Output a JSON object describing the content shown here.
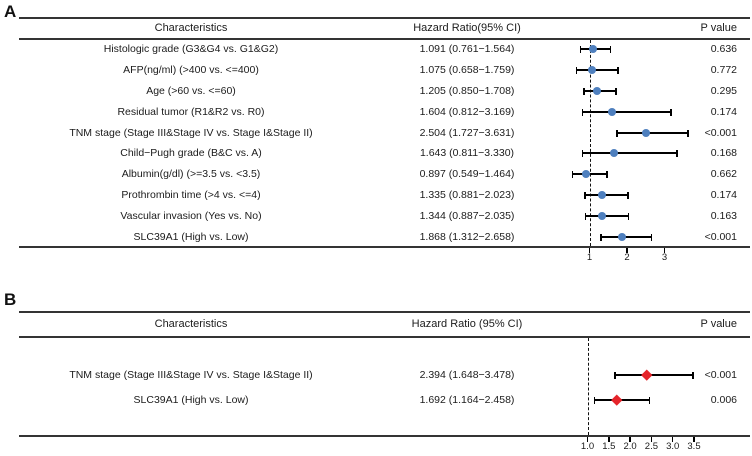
{
  "chart_data": [
    {
      "type": "scatter",
      "subtype": "forest-plot",
      "panel_label": "A",
      "columns": [
        "Characteristics",
        "Hazard Ratio(95% CI)",
        "P value"
      ],
      "x_axis": {
        "tick_labels": [
          "1",
          "2",
          "3"
        ],
        "reference_line": 1,
        "scale": "linear"
      },
      "marker": {
        "shape": "circle",
        "color": "#4e7fbe"
      },
      "error_bar_color": "#000000",
      "rows": [
        {
          "characteristic": "Histologic grade (G3&G4 vs. G1&G2)",
          "hr": 1.091,
          "ci_low": 0.761,
          "ci_high": 1.564,
          "hr_ci_text": "1.091 (0.761−1.564)",
          "p_value": "0.636"
        },
        {
          "characteristic": "AFP(ng/ml) (>400 vs. <=400)",
          "hr": 1.075,
          "ci_low": 0.658,
          "ci_high": 1.759,
          "hr_ci_text": "1.075 (0.658−1.759)",
          "p_value": "0.772"
        },
        {
          "characteristic": "Age (>60 vs. <=60)",
          "hr": 1.205,
          "ci_low": 0.85,
          "ci_high": 1.708,
          "hr_ci_text": "1.205 (0.850−1.708)",
          "p_value": "0.295"
        },
        {
          "characteristic": "Residual tumor (R1&R2 vs. R0)",
          "hr": 1.604,
          "ci_low": 0.812,
          "ci_high": 3.169,
          "hr_ci_text": "1.604 (0.812−3.169)",
          "p_value": "0.174"
        },
        {
          "characteristic": "TNM stage (Stage III&Stage IV vs. Stage I&Stage II)",
          "hr": 2.504,
          "ci_low": 1.727,
          "ci_high": 3.631,
          "hr_ci_text": "2.504 (1.727−3.631)",
          "p_value": "<0.001"
        },
        {
          "characteristic": "Child−Pugh grade (B&C vs. A)",
          "hr": 1.643,
          "ci_low": 0.811,
          "ci_high": 3.33,
          "hr_ci_text": "1.643 (0.811−3.330)",
          "p_value": "0.168"
        },
        {
          "characteristic": "Albumin(g/dl) (>=3.5 vs. <3.5)",
          "hr": 0.897,
          "ci_low": 0.549,
          "ci_high": 1.464,
          "hr_ci_text": "0.897 (0.549−1.464)",
          "p_value": "0.662"
        },
        {
          "characteristic": "Prothrombin time (>4 vs. <=4)",
          "hr": 1.335,
          "ci_low": 0.881,
          "ci_high": 2.023,
          "hr_ci_text": "1.335 (0.881−2.023)",
          "p_value": "0.174"
        },
        {
          "characteristic": "Vascular invasion (Yes vs. No)",
          "hr": 1.344,
          "ci_low": 0.887,
          "ci_high": 2.035,
          "hr_ci_text": "1.344 (0.887−2.035)",
          "p_value": "0.163"
        },
        {
          "characteristic": "SLC39A1 (High vs. Low)",
          "hr": 1.868,
          "ci_low": 1.312,
          "ci_high": 2.658,
          "hr_ci_text": "1.868 (1.312−2.658)",
          "p_value": "<0.001"
        }
      ]
    },
    {
      "type": "scatter",
      "subtype": "forest-plot",
      "panel_label": "B",
      "columns": [
        "Characteristics",
        "Hazard Ratio (95% CI)",
        "P value"
      ],
      "x_axis": {
        "tick_labels": [
          "1.0",
          "1.5",
          "2.0",
          "2.5",
          "3.0",
          "3.5"
        ],
        "reference_line": 1.0,
        "scale": "linear"
      },
      "marker": {
        "shape": "diamond",
        "color": "#e5242a"
      },
      "error_bar_color": "#000000",
      "rows": [
        {
          "characteristic": "TNM stage (Stage III&Stage IV vs. Stage I&Stage II)",
          "hr": 2.394,
          "ci_low": 1.648,
          "ci_high": 3.478,
          "hr_ci_text": "2.394 (1.648−3.478)",
          "p_value": "<0.001"
        },
        {
          "characteristic": "SLC39A1 (High vs. Low)",
          "hr": 1.692,
          "ci_low": 1.164,
          "ci_high": 2.458,
          "hr_ci_text": "1.692 (1.164−2.458)",
          "p_value": "0.006"
        }
      ]
    }
  ]
}
